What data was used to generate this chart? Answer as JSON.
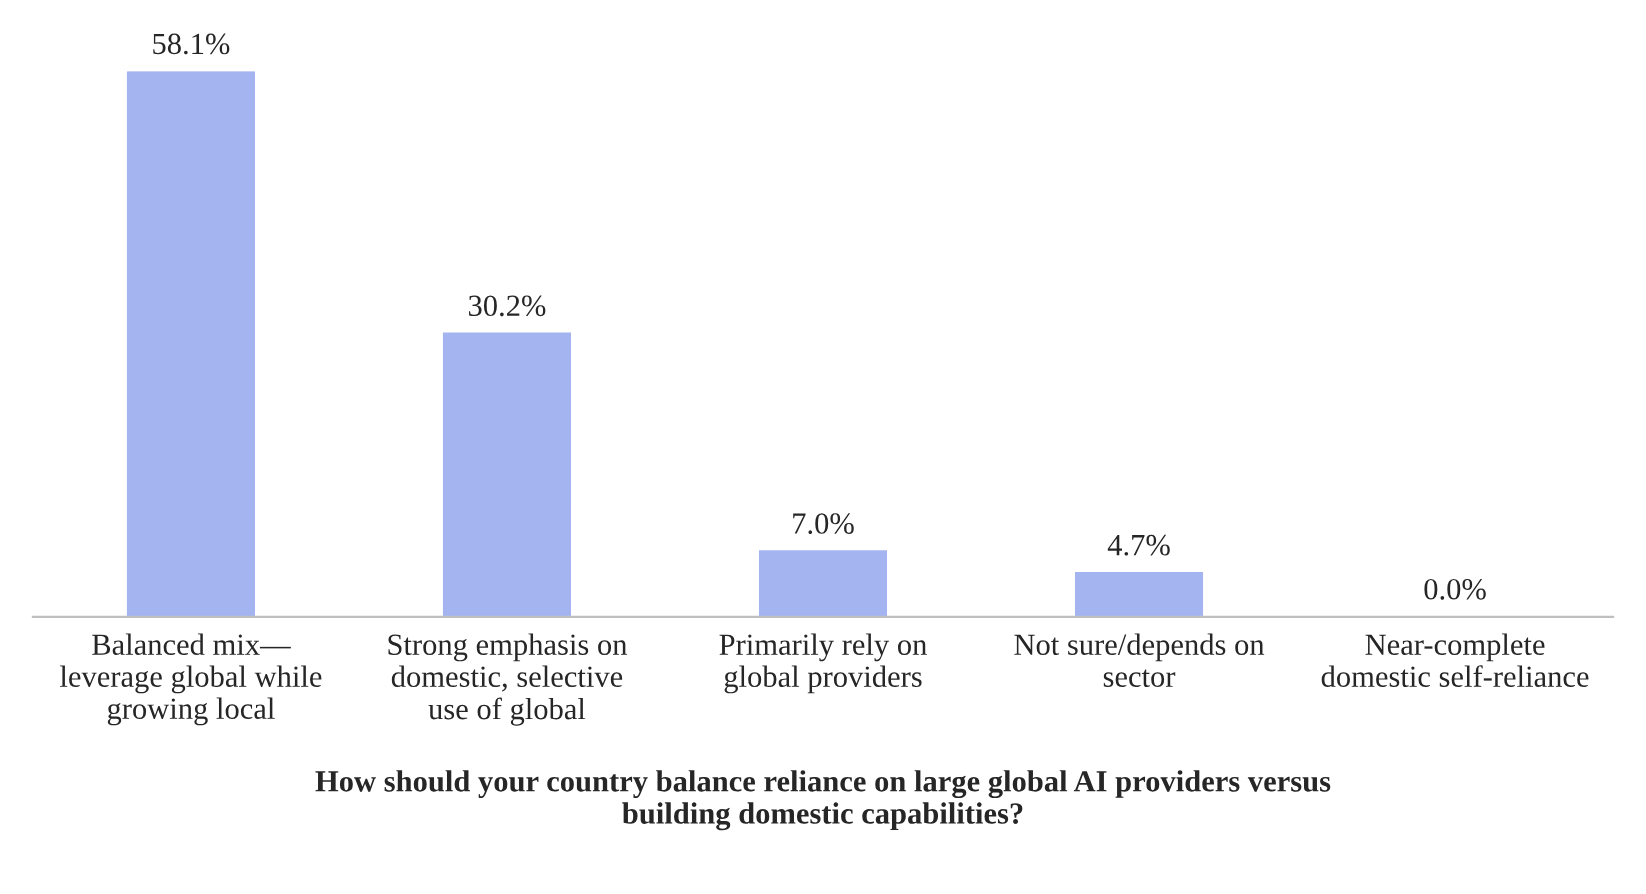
{
  "chart_data": {
    "type": "bar",
    "xlabel": "How should your country balance reliance on large global AI providers versus\nbuilding domestic capabilities?",
    "categories": [
      "Balanced mix—\nleverage global while\ngrowing local",
      "Strong emphasis on\ndomestic, selective\nuse of global",
      "Primarily rely on\nglobal providers",
      "Not sure/depends on\nsector",
      "Near-complete\ndomestic self-reliance"
    ],
    "values": [
      58.1,
      30.2,
      7.0,
      4.7,
      0.0
    ],
    "value_labels": [
      "58.1%",
      "30.2%",
      "7.0%",
      "4.7%",
      "0.0%"
    ],
    "color": "#a4b4f0",
    "grid": false,
    "legend": false
  }
}
